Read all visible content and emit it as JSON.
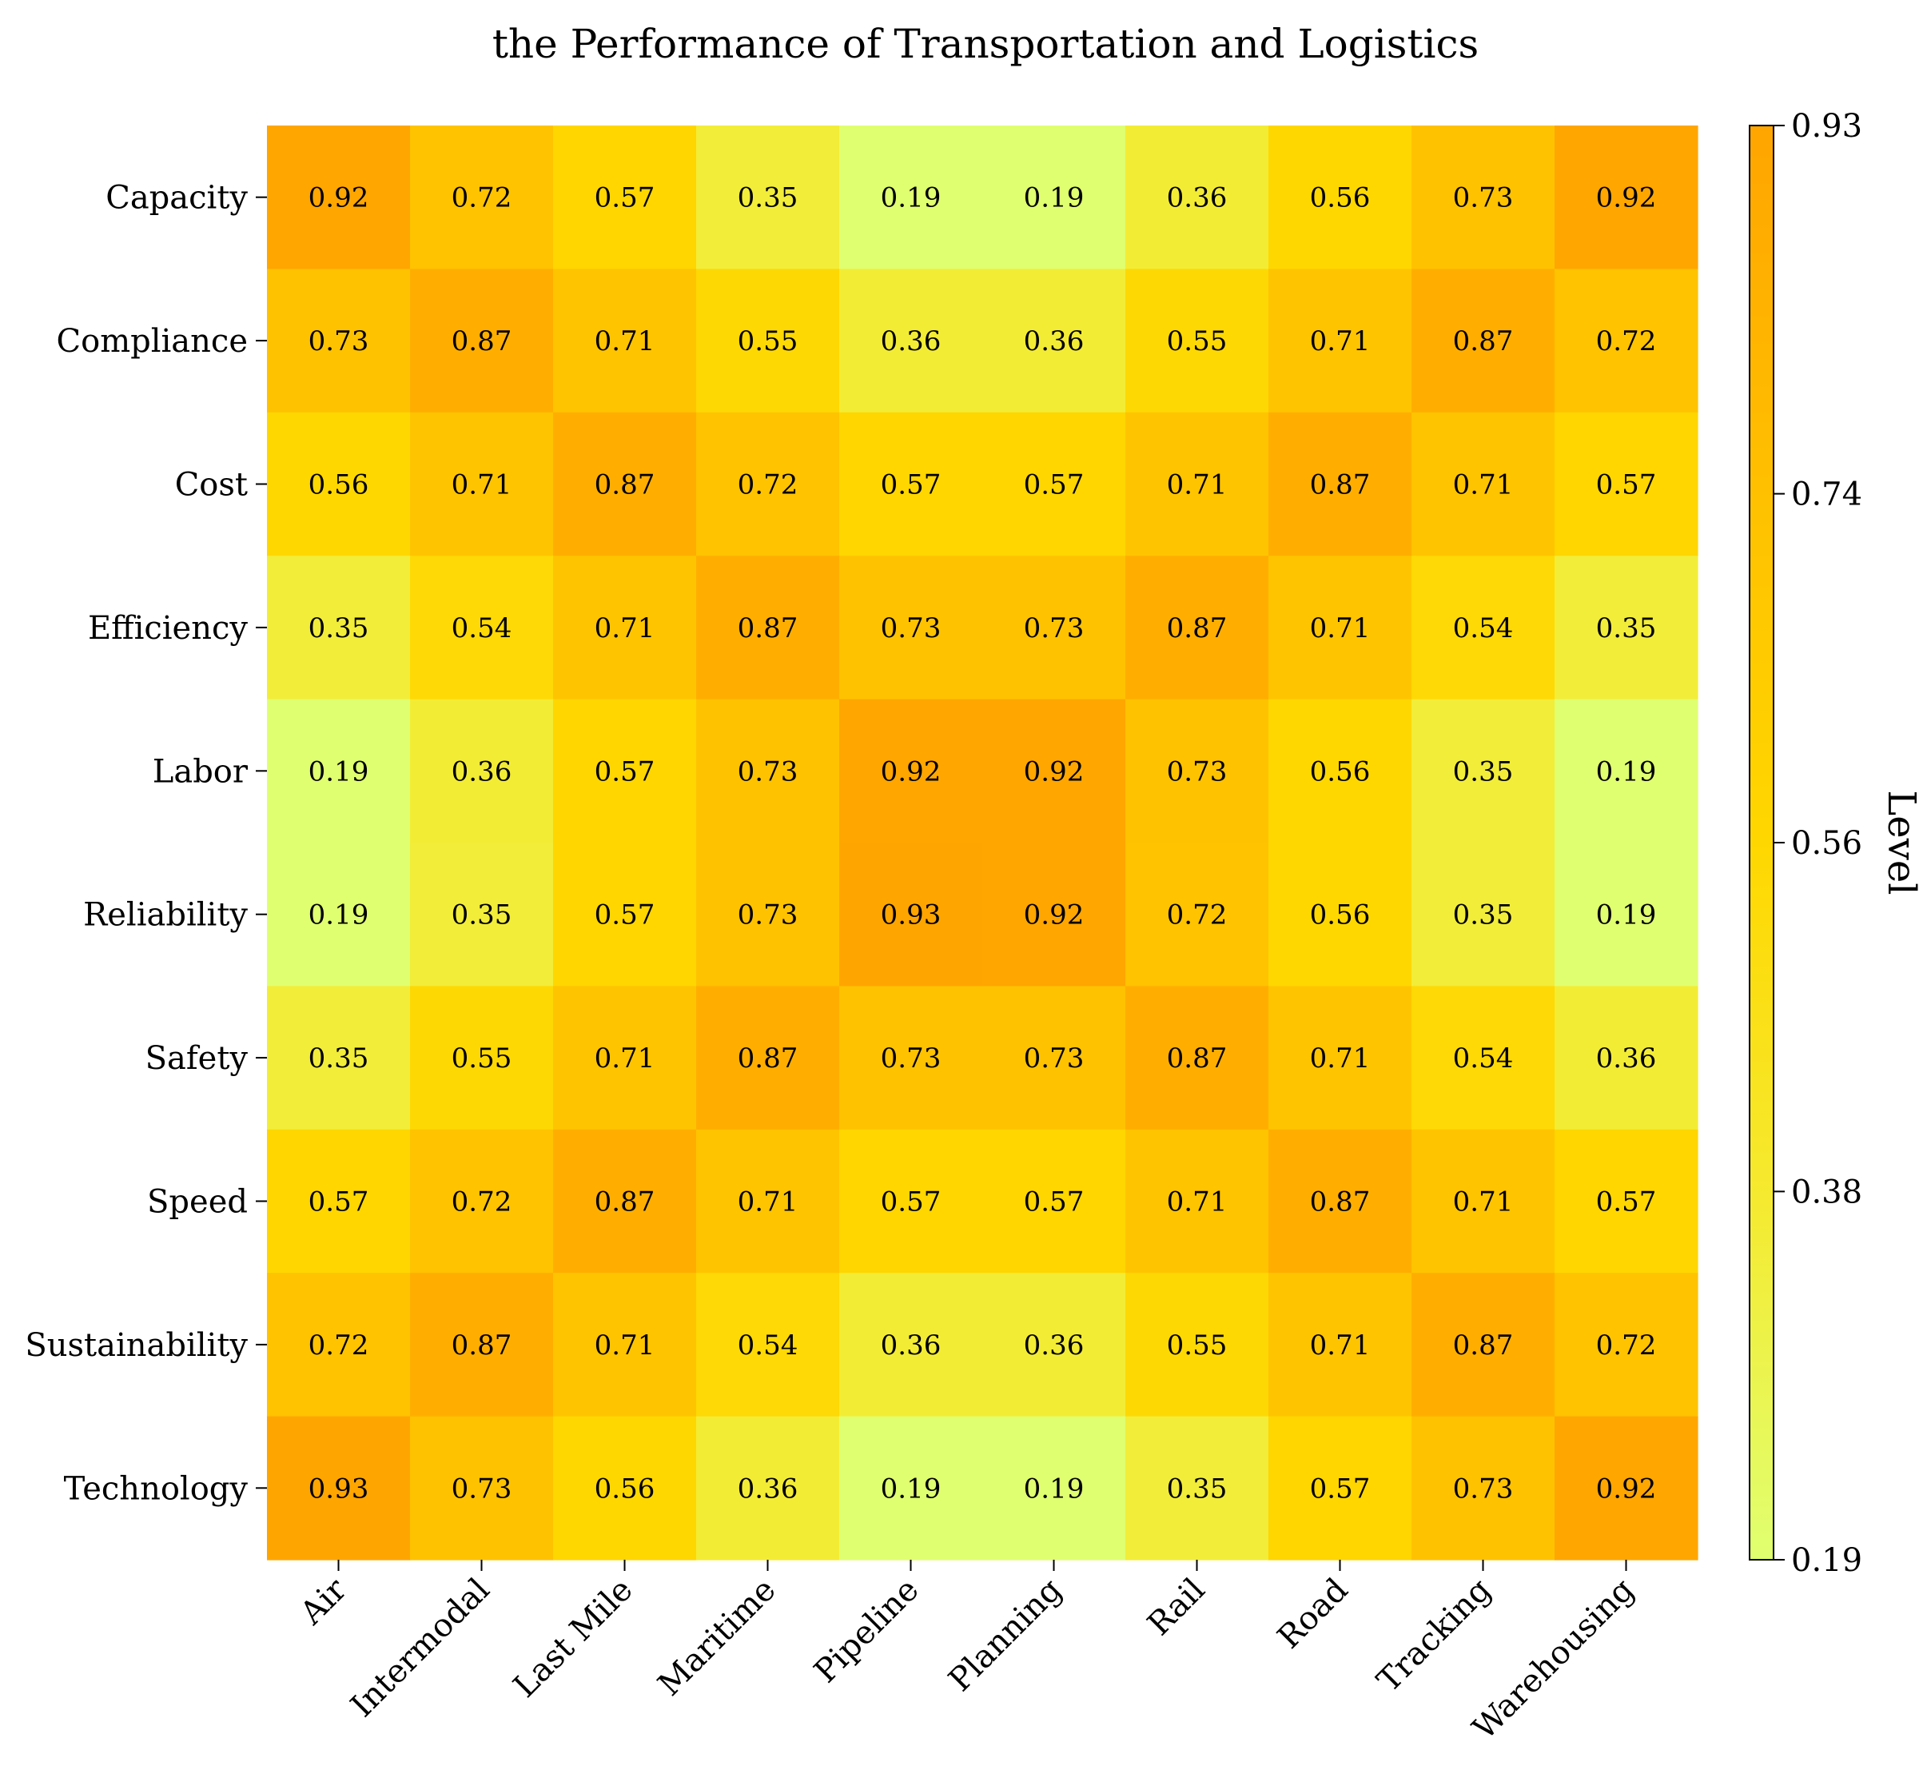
{
  "chart_data": {
    "type": "heatmap",
    "title": "the Performance of Transportation and Logistics",
    "xlabel": "",
    "ylabel": "",
    "x_categories": [
      "Air",
      "Intermodal",
      "Last Mile",
      "Maritime",
      "Pipeline",
      "Planning",
      "Rail",
      "Road",
      "Tracking",
      "Warehousing"
    ],
    "y_categories": [
      "Capacity",
      "Compliance",
      "Cost",
      "Efficiency",
      "Labor",
      "Reliability",
      "Safety",
      "Speed",
      "Sustainability",
      "Technology"
    ],
    "values": [
      [
        0.92,
        0.72,
        0.57,
        0.35,
        0.19,
        0.19,
        0.36,
        0.56,
        0.73,
        0.92
      ],
      [
        0.73,
        0.87,
        0.71,
        0.55,
        0.36,
        0.36,
        0.55,
        0.71,
        0.87,
        0.72
      ],
      [
        0.56,
        0.71,
        0.87,
        0.72,
        0.57,
        0.57,
        0.71,
        0.87,
        0.71,
        0.57
      ],
      [
        0.35,
        0.54,
        0.71,
        0.87,
        0.73,
        0.73,
        0.87,
        0.71,
        0.54,
        0.35
      ],
      [
        0.19,
        0.36,
        0.57,
        0.73,
        0.92,
        0.92,
        0.73,
        0.56,
        0.35,
        0.19
      ],
      [
        0.19,
        0.35,
        0.57,
        0.73,
        0.93,
        0.92,
        0.72,
        0.56,
        0.35,
        0.19
      ],
      [
        0.35,
        0.55,
        0.71,
        0.87,
        0.73,
        0.73,
        0.87,
        0.71,
        0.54,
        0.36
      ],
      [
        0.57,
        0.72,
        0.87,
        0.71,
        0.57,
        0.57,
        0.71,
        0.87,
        0.71,
        0.57
      ],
      [
        0.72,
        0.87,
        0.71,
        0.54,
        0.36,
        0.36,
        0.55,
        0.71,
        0.87,
        0.72
      ],
      [
        0.93,
        0.73,
        0.56,
        0.36,
        0.19,
        0.19,
        0.35,
        0.57,
        0.73,
        0.92
      ]
    ],
    "colorbar": {
      "label": "Level",
      "min": 0.19,
      "max": 0.93,
      "ticks": [
        "0.19",
        "0.38",
        "0.56",
        "0.74",
        "0.93"
      ],
      "colors": [
        "#e0ff70",
        "#f5ea30",
        "#ffd700",
        "#ffc000",
        "#ffa500"
      ]
    },
    "cell_labels": true,
    "grid": false,
    "legend": "colorbar-right"
  }
}
